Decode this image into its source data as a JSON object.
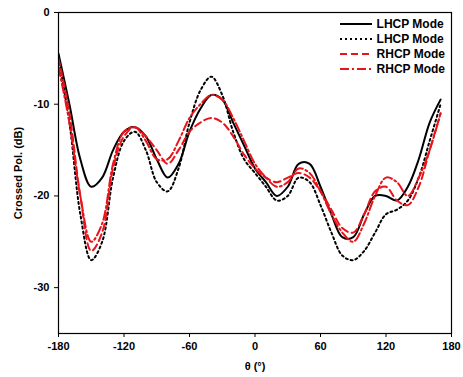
{
  "chart_data": {
    "type": "line",
    "x_label": "θ (°)",
    "y_label": "Crossed Pol. (dB)",
    "x": [
      -180,
      -170,
      -160,
      -150,
      -140,
      -130,
      -120,
      -110,
      -100,
      -90,
      -80,
      -70,
      -60,
      -50,
      -40,
      -30,
      -20,
      -10,
      0,
      10,
      20,
      30,
      40,
      50,
      60,
      70,
      80,
      90,
      100,
      110,
      120,
      130,
      140,
      150,
      160,
      170
    ],
    "series": [
      {
        "name": "LHCP Mode",
        "color": "#000000",
        "line_style": "solid",
        "values": [
          -4.5,
          -10,
          -16,
          -19,
          -18,
          -15,
          -13,
          -12.5,
          -13.5,
          -16,
          -18,
          -16.5,
          -13,
          -10.5,
          -9,
          -9.5,
          -12,
          -14.5,
          -17,
          -18.5,
          -20,
          -19,
          -16.5,
          -16.5,
          -19,
          -22,
          -24.5,
          -24.5,
          -22,
          -20,
          -20,
          -20.5,
          -19,
          -16,
          -12,
          -9.5
        ]
      },
      {
        "name": "LHCP Mode",
        "color": "#000000",
        "line_style": "dotted",
        "values": [
          -5,
          -12,
          -22,
          -27,
          -25,
          -18,
          -14,
          -13,
          -15,
          -18.5,
          -19.5,
          -17,
          -12,
          -8.5,
          -7,
          -9,
          -13,
          -16,
          -17.5,
          -19,
          -20.5,
          -20,
          -18,
          -18.5,
          -21,
          -24,
          -26.5,
          -27,
          -26,
          -24,
          -22,
          -21.5,
          -20.5,
          -18,
          -14,
          -10
        ]
      },
      {
        "name": "RHCP Mode",
        "color": "#e8141c",
        "line_style": "dashed",
        "values": [
          -5,
          -11,
          -20,
          -26,
          -24,
          -17,
          -13.5,
          -12.5,
          -13.5,
          -15,
          -16.5,
          -15,
          -13,
          -12,
          -11.5,
          -12,
          -13.5,
          -15.5,
          -17,
          -18,
          -18.5,
          -18,
          -17.5,
          -18,
          -19.5,
          -21.5,
          -23.5,
          -24,
          -22,
          -19.5,
          -19,
          -20.5,
          -21,
          -19,
          -15,
          -11
        ]
      },
      {
        "name": "RHCP Mode",
        "color": "#e8141c",
        "line_style": "dashdot",
        "values": [
          -6,
          -12,
          -20,
          -25,
          -23,
          -16.5,
          -13,
          -12.5,
          -14,
          -16,
          -16,
          -14,
          -11.5,
          -10,
          -9,
          -9.5,
          -11.5,
          -14,
          -16.5,
          -18,
          -19,
          -18.5,
          -17,
          -17.5,
          -19.5,
          -22,
          -24,
          -25,
          -23,
          -20,
          -18,
          -18.5,
          -20,
          -18,
          -15,
          -11
        ]
      }
    ],
    "xlim": [
      -180,
      180
    ],
    "xticks": [
      -180,
      -120,
      -60,
      0,
      60,
      120,
      180
    ],
    "ylim": [
      -35,
      0
    ],
    "yticks": [
      -30,
      -20,
      -10,
      0
    ],
    "legend": "top-right",
    "grid": false
  }
}
